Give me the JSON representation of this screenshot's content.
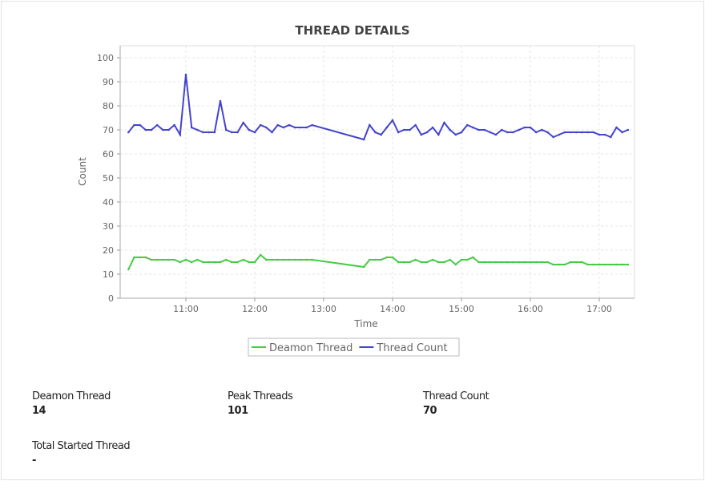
{
  "panel": {
    "title": "THREAD DETAILS"
  },
  "chart_data": {
    "type": "line",
    "title": "THREAD DETAILS",
    "xlabel": "Time",
    "ylabel": "Count",
    "ylim": [
      0,
      100
    ],
    "yticks": [
      0,
      10,
      20,
      30,
      40,
      50,
      60,
      70,
      80,
      90,
      100
    ],
    "xticks": [
      "11:00",
      "12:00",
      "13:00",
      "14:00",
      "15:00",
      "16:00",
      "17:00"
    ],
    "grid": true,
    "legend": "bottom",
    "segments": [
      {
        "start": "10:10",
        "step_minutes": 5,
        "count": 33
      },
      {
        "start": "13:35",
        "step_minutes": 5,
        "count": 47
      }
    ],
    "series": [
      {
        "name": "Deamon Thread",
        "color": "#44cc44",
        "values": [
          12,
          17,
          17,
          17,
          16,
          16,
          16,
          16,
          16,
          15,
          16,
          15,
          16,
          15,
          15,
          15,
          15,
          16,
          15,
          15,
          16,
          15,
          15,
          18,
          16,
          16,
          16,
          16,
          16,
          16,
          16,
          16,
          16,
          13,
          16,
          16,
          16,
          17,
          17,
          15,
          15,
          15,
          16,
          15,
          15,
          16,
          15,
          15,
          16,
          14,
          16,
          16,
          17,
          15,
          15,
          15,
          15,
          15,
          15,
          15,
          15,
          15,
          15,
          15,
          15,
          15,
          14,
          14,
          14,
          15,
          15,
          15,
          14,
          14,
          14,
          14,
          14,
          14,
          14,
          14
        ]
      },
      {
        "name": "Thread Count",
        "color": "#4444cc",
        "values": [
          69,
          72,
          72,
          70,
          70,
          72,
          70,
          70,
          72,
          68,
          93,
          71,
          70,
          69,
          69,
          69,
          82,
          70,
          69,
          69,
          73,
          70,
          69,
          72,
          71,
          69,
          72,
          71,
          72,
          71,
          71,
          71,
          72,
          66,
          72,
          69,
          68,
          71,
          74,
          69,
          70,
          70,
          72,
          68,
          69,
          71,
          68,
          73,
          70,
          68,
          69,
          72,
          71,
          70,
          70,
          69,
          68,
          70,
          69,
          69,
          70,
          71,
          71,
          69,
          70,
          69,
          67,
          68,
          69,
          69,
          69,
          69,
          69,
          69,
          68,
          68,
          67,
          71,
          69,
          70
        ]
      }
    ]
  },
  "stats": [
    {
      "label": "Deamon Thread",
      "value": "14"
    },
    {
      "label": "Peak Threads",
      "value": "101"
    },
    {
      "label": "Thread Count",
      "value": "70"
    },
    {
      "label": "Total Started Thread",
      "value": "-"
    }
  ]
}
